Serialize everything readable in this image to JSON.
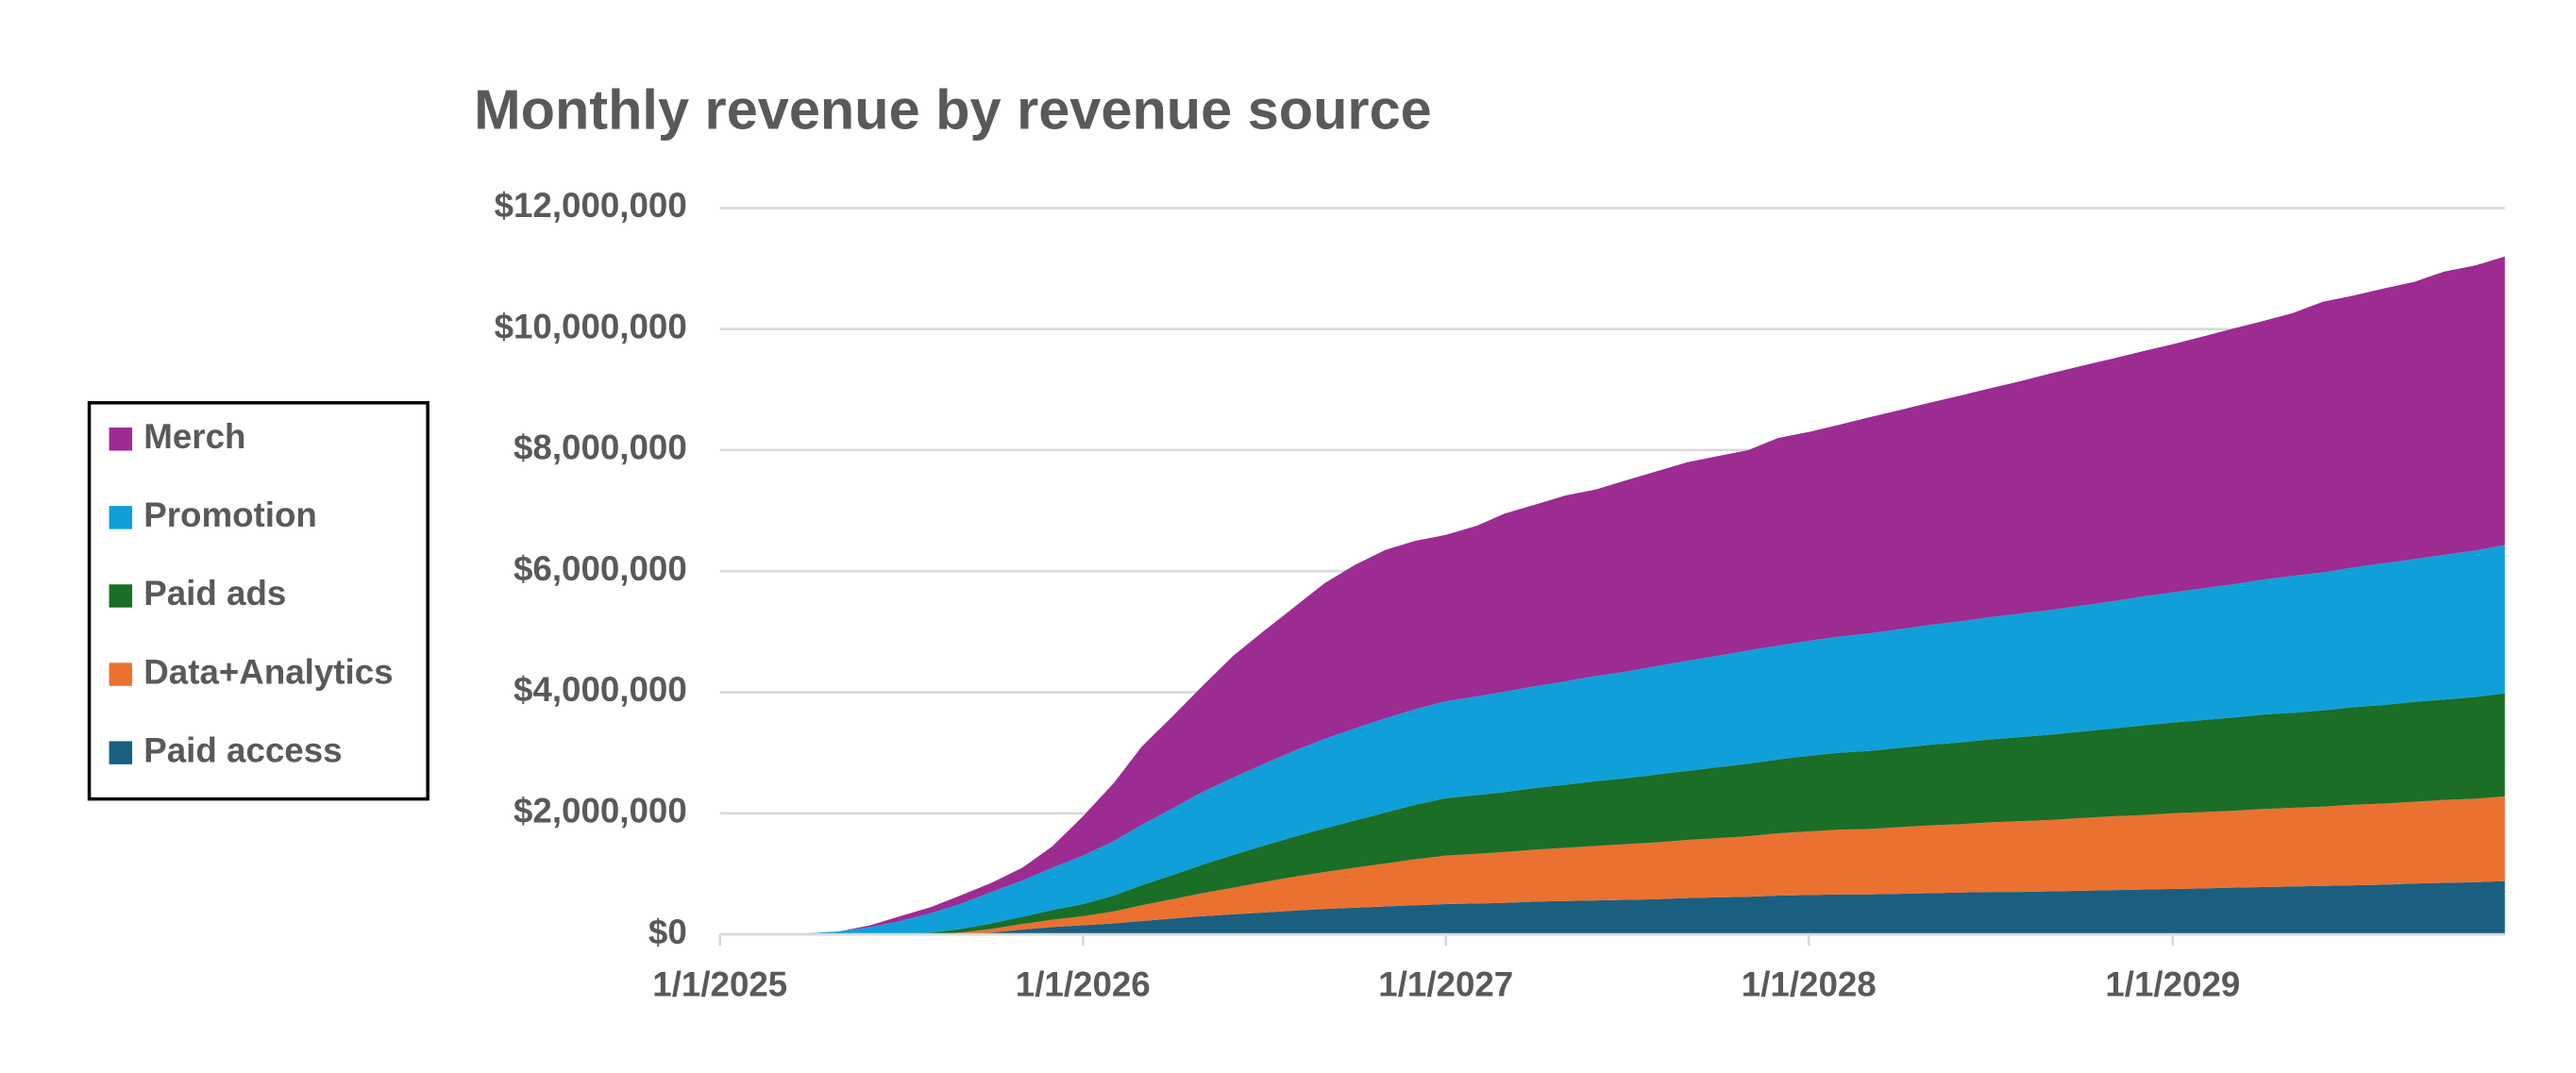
{
  "chart_data": {
    "type": "stacked_area",
    "title": "Monthly revenue by revenue source",
    "x": [
      "1/1/2025",
      "2/1/2025",
      "3/1/2025",
      "4/1/2025",
      "5/1/2025",
      "6/1/2025",
      "7/1/2025",
      "8/1/2025",
      "9/1/2025",
      "10/1/2025",
      "11/1/2025",
      "12/1/2025",
      "1/1/2026",
      "2/1/2026",
      "3/1/2026",
      "4/1/2026",
      "5/1/2026",
      "6/1/2026",
      "7/1/2026",
      "8/1/2026",
      "9/1/2026",
      "10/1/2026",
      "11/1/2026",
      "12/1/2026",
      "1/1/2027",
      "2/1/2027",
      "3/1/2027",
      "4/1/2027",
      "5/1/2027",
      "6/1/2027",
      "7/1/2027",
      "8/1/2027",
      "9/1/2027",
      "10/1/2027",
      "11/1/2027",
      "12/1/2027",
      "1/1/2028",
      "2/1/2028",
      "3/1/2028",
      "4/1/2028",
      "5/1/2028",
      "6/1/2028",
      "7/1/2028",
      "8/1/2028",
      "9/1/2028",
      "10/1/2028",
      "11/1/2028",
      "12/1/2028",
      "1/1/2029",
      "2/1/2029",
      "3/1/2029",
      "4/1/2029",
      "5/1/2029",
      "6/1/2029",
      "7/1/2029",
      "8/1/2029",
      "9/1/2029",
      "10/1/2029",
      "11/1/2029",
      "12/1/2029"
    ],
    "series": [
      {
        "name": "Paid access",
        "color": "#1a5f80",
        "values": [
          0,
          0,
          0,
          0,
          0,
          0,
          0,
          0,
          0,
          30000,
          80000,
          120000,
          150000,
          180000,
          220000,
          260000,
          300000,
          330000,
          360000,
          390000,
          420000,
          440000,
          460000,
          480000,
          500000,
          510000,
          520000,
          540000,
          550000,
          560000,
          570000,
          580000,
          600000,
          610000,
          620000,
          640000,
          650000,
          660000,
          660000,
          670000,
          680000,
          690000,
          700000,
          700000,
          710000,
          720000,
          730000,
          740000,
          750000,
          760000,
          770000,
          780000,
          790000,
          800000,
          810000,
          820000,
          840000,
          850000,
          860000,
          880000
        ]
      },
      {
        "name": "Data+Analytics",
        "color": "#ea7130",
        "values": [
          0,
          0,
          0,
          0,
          0,
          0,
          0,
          0,
          30000,
          60000,
          90000,
          120000,
          150000,
          200000,
          260000,
          320000,
          380000,
          440000,
          500000,
          560000,
          610000,
          660000,
          710000,
          760000,
          800000,
          820000,
          840000,
          860000,
          880000,
          900000,
          920000,
          940000,
          960000,
          980000,
          1000000,
          1030000,
          1050000,
          1070000,
          1080000,
          1100000,
          1120000,
          1130000,
          1150000,
          1170000,
          1180000,
          1200000,
          1220000,
          1230000,
          1250000,
          1260000,
          1270000,
          1290000,
          1300000,
          1310000,
          1330000,
          1340000,
          1350000,
          1370000,
          1380000,
          1400000
        ]
      },
      {
        "name": "Paid ads",
        "color": "#1a6e26",
        "values": [
          0,
          0,
          0,
          0,
          0,
          0,
          0,
          30000,
          60000,
          90000,
          120000,
          160000,
          200000,
          260000,
          330000,
          400000,
          470000,
          540000,
          600000,
          660000,
          720000,
          780000,
          840000,
          900000,
          950000,
          970000,
          990000,
          1020000,
          1040000,
          1070000,
          1090000,
          1120000,
          1140000,
          1170000,
          1200000,
          1220000,
          1250000,
          1270000,
          1290000,
          1310000,
          1330000,
          1350000,
          1370000,
          1390000,
          1410000,
          1430000,
          1450000,
          1480000,
          1500000,
          1520000,
          1540000,
          1560000,
          1570000,
          1590000,
          1610000,
          1630000,
          1650000,
          1660000,
          1680000,
          1700000
        ]
      },
      {
        "name": "Promotion",
        "color": "#109fd8",
        "values": [
          0,
          0,
          0,
          20000,
          50000,
          120000,
          220000,
          320000,
          420000,
          520000,
          600000,
          700000,
          800000,
          900000,
          1000000,
          1100000,
          1200000,
          1280000,
          1350000,
          1420000,
          1480000,
          1520000,
          1560000,
          1580000,
          1600000,
          1630000,
          1660000,
          1680000,
          1710000,
          1740000,
          1760000,
          1790000,
          1820000,
          1840000,
          1870000,
          1880000,
          1900000,
          1920000,
          1940000,
          1960000,
          1980000,
          2000000,
          2020000,
          2040000,
          2060000,
          2080000,
          2100000,
          2130000,
          2150000,
          2180000,
          2200000,
          2230000,
          2260000,
          2280000,
          2310000,
          2340000,
          2360000,
          2390000,
          2420000,
          2450000
        ]
      },
      {
        "name": "Merch",
        "color": "#9c2b92",
        "values": [
          0,
          0,
          0,
          0,
          0,
          30000,
          80000,
          100000,
          140000,
          150000,
          210000,
          350000,
          650000,
          960000,
          1290000,
          1520000,
          1750000,
          2010000,
          2190000,
          2370000,
          2570000,
          2700000,
          2780000,
          2780000,
          2750000,
          2820000,
          2940000,
          3000000,
          3070000,
          3080000,
          3160000,
          3220000,
          3280000,
          3300000,
          3310000,
          3430000,
          3450000,
          3500000,
          3570000,
          3620000,
          3670000,
          3730000,
          3780000,
          3840000,
          3910000,
          3960000,
          4010000,
          4050000,
          4100000,
          4160000,
          4220000,
          4270000,
          4340000,
          4470000,
          4490000,
          4540000,
          4580000,
          4680000,
          4710000,
          4770000
        ]
      }
    ],
    "xlim": [
      "1/1/2025",
      "12/1/2029"
    ],
    "xticks": [
      "1/1/2025",
      "1/1/2026",
      "1/1/2027",
      "1/1/2028",
      "1/1/2029"
    ],
    "ylim": [
      0,
      12000000
    ],
    "yticks": [
      {
        "value": 0,
        "label": "$0"
      },
      {
        "value": 2000000,
        "label": "$2,000,000"
      },
      {
        "value": 4000000,
        "label": "$4,000,000"
      },
      {
        "value": 6000000,
        "label": "$6,000,000"
      },
      {
        "value": 8000000,
        "label": "$8,000,000"
      },
      {
        "value": 10000000,
        "label": "$10,000,000"
      },
      {
        "value": 12000000,
        "label": "$12,000,000"
      }
    ],
    "grid": true,
    "legend": "left"
  }
}
